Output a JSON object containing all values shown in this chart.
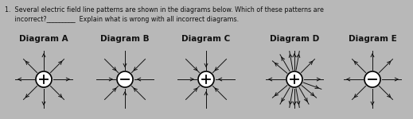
{
  "title_text": "1.  Several electric field line patterns are shown in the diagrams below. Which of these patterns are\n     incorrect?_________  Explain what is wrong with all incorrect diagrams.",
  "diagrams": [
    {
      "label": "Diagram A",
      "charge": "+",
      "arrow_style": "outward",
      "num_arrows": 8,
      "angles_deg": [
        0,
        45,
        90,
        135,
        180,
        225,
        270,
        315
      ],
      "arrow_color": "#111111"
    },
    {
      "label": "Diagram B",
      "charge": "-",
      "arrow_style": "inward",
      "num_arrows": 8,
      "angles_deg": [
        0,
        45,
        90,
        135,
        180,
        225,
        270,
        315
      ],
      "arrow_color": "#111111"
    },
    {
      "label": "Diagram C",
      "charge": "+",
      "arrow_style": "inward",
      "num_arrows": 8,
      "angles_deg": [
        0,
        45,
        90,
        135,
        180,
        225,
        270,
        315
      ],
      "arrow_color": "#111111"
    },
    {
      "label": "Diagram D",
      "charge": "+",
      "arrow_style": "outward",
      "num_arrows": 16,
      "angles_deg": [
        0,
        20,
        40,
        60,
        80,
        90,
        100,
        120,
        140,
        180,
        220,
        240,
        260,
        270,
        280,
        315
      ],
      "arrow_color": "#111111"
    },
    {
      "label": "Diagram E",
      "charge": "-",
      "arrow_style": "outward",
      "num_arrows": 8,
      "angles_deg": [
        0,
        45,
        90,
        135,
        180,
        225,
        270,
        315
      ],
      "arrow_color": "#111111"
    }
  ],
  "bg_color": "#b8b8b8",
  "text_color": "#111111",
  "title_fontsize": 5.8,
  "label_fontsize": 7.5,
  "fig_width": 5.19,
  "fig_height": 1.5
}
